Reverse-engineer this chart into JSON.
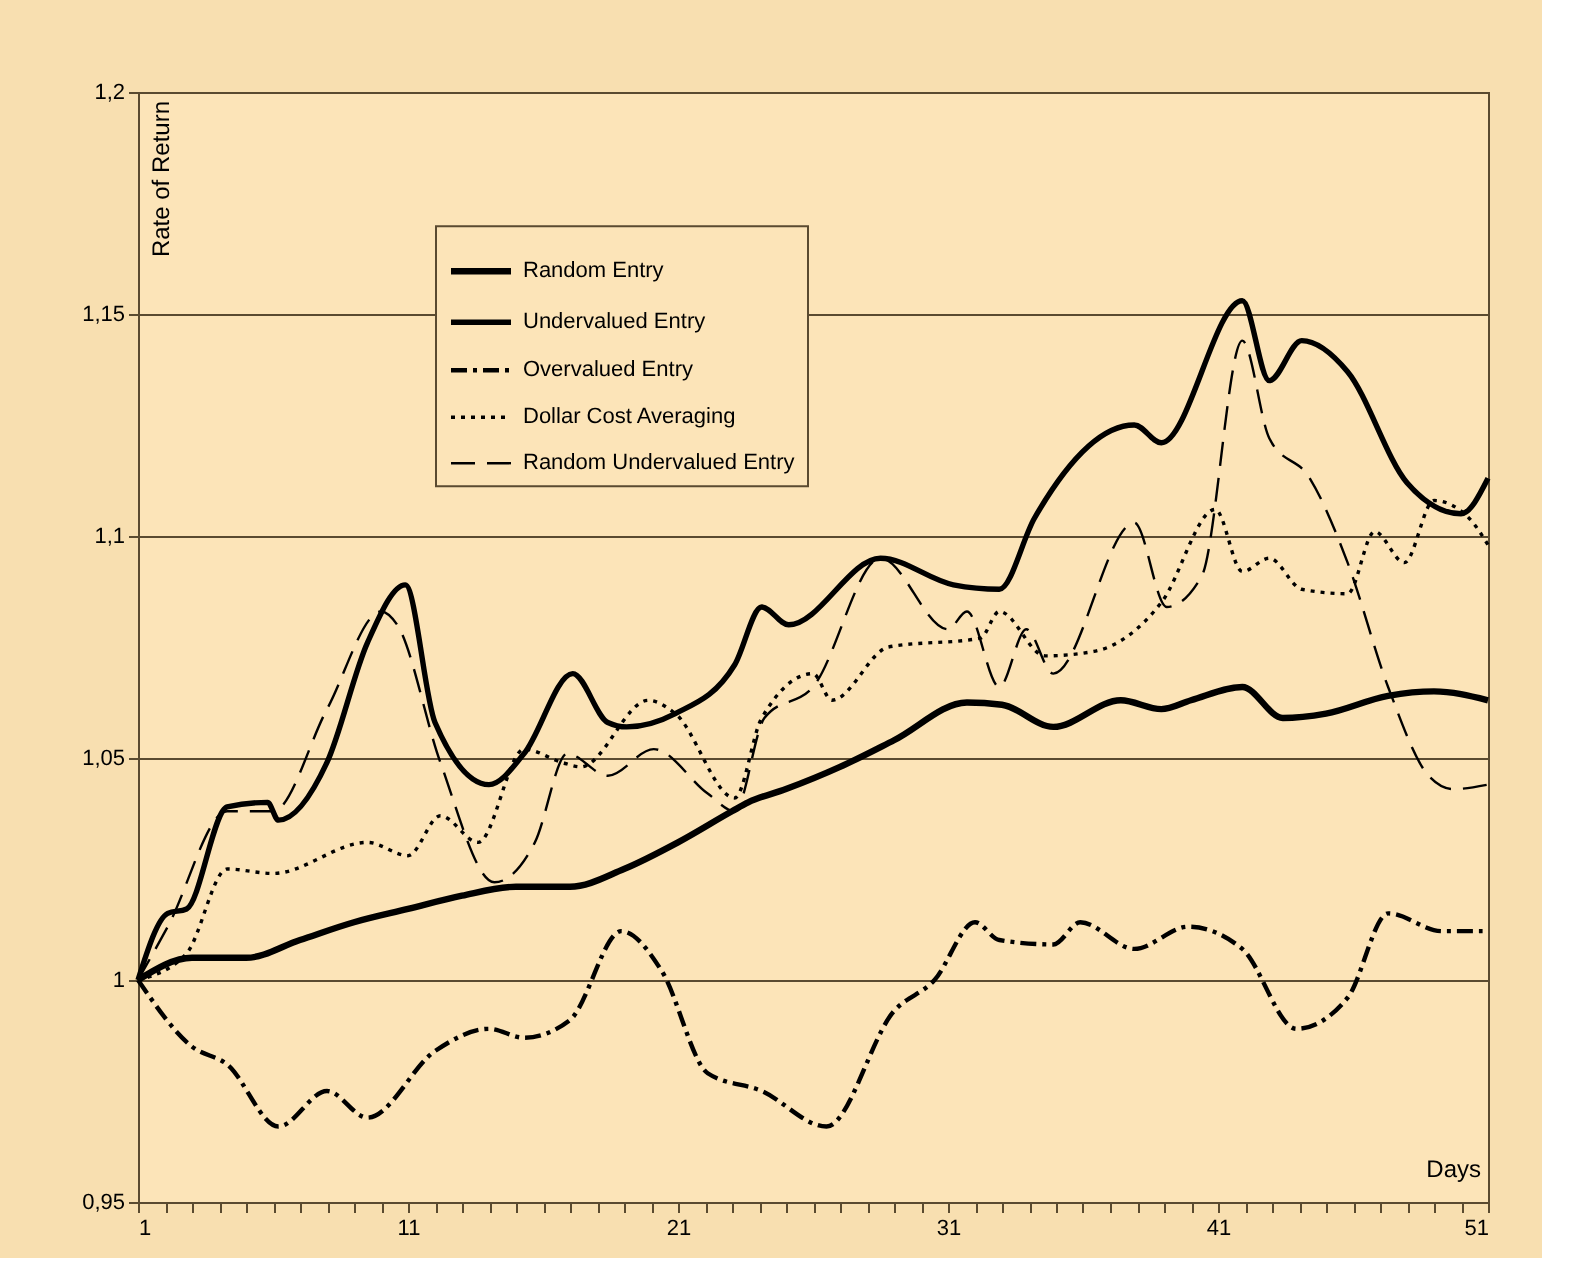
{
  "chart_data": {
    "type": "line",
    "xlabel": "Days",
    "ylabel": "Rate of Return",
    "xlim": [
      1,
      51
    ],
    "ylim": [
      0.95,
      1.2
    ],
    "xticks": [
      1,
      {
        "value": 2,
        "label": null
      },
      {
        "value": 3,
        "label": null
      },
      {
        "value": 4,
        "label": null
      },
      {
        "value": 5,
        "label": null
      },
      {
        "value": 6,
        "label": null
      },
      {
        "value": 7,
        "label": null
      },
      {
        "value": 8,
        "label": null
      },
      {
        "value": 9,
        "label": null
      },
      {
        "value": 10,
        "label": null
      },
      11,
      {
        "value": 12,
        "label": null
      },
      {
        "value": 13,
        "label": null
      },
      {
        "value": 14,
        "label": null
      },
      {
        "value": 15,
        "label": null
      },
      {
        "value": 16,
        "label": null
      },
      {
        "value": 17,
        "label": null
      },
      {
        "value": 18,
        "label": null
      },
      {
        "value": 19,
        "label": null
      },
      {
        "value": 20,
        "label": null
      },
      21,
      {
        "value": 22,
        "label": null
      },
      {
        "value": 23,
        "label": null
      },
      {
        "value": 24,
        "label": null
      },
      {
        "value": 25,
        "label": null
      },
      {
        "value": 26,
        "label": null
      },
      {
        "value": 27,
        "label": null
      },
      {
        "value": 28,
        "label": null
      },
      {
        "value": 29,
        "label": null
      },
      {
        "value": 30,
        "label": null
      },
      31,
      {
        "value": 32,
        "label": null
      },
      {
        "value": 33,
        "label": null
      },
      {
        "value": 34,
        "label": null
      },
      {
        "value": 35,
        "label": null
      },
      {
        "value": 36,
        "label": null
      },
      {
        "value": 37,
        "label": null
      },
      {
        "value": 38,
        "label": null
      },
      {
        "value": 39,
        "label": null
      },
      {
        "value": 40,
        "label": null
      },
      41,
      {
        "value": 42,
        "label": null
      },
      {
        "value": 43,
        "label": null
      },
      {
        "value": 44,
        "label": null
      },
      {
        "value": 45,
        "label": null
      },
      {
        "value": 46,
        "label": null
      },
      {
        "value": 47,
        "label": null
      },
      {
        "value": 48,
        "label": null
      },
      {
        "value": 49,
        "label": null
      },
      {
        "value": 50,
        "label": null
      },
      51
    ],
    "yticks": [
      {
        "value": 0.95,
        "label": "0,95"
      },
      1,
      {
        "value": 1.05,
        "label": "1,05"
      },
      {
        "value": 1.1,
        "label": "1,1"
      },
      {
        "value": 1.15,
        "label": "1,15"
      },
      {
        "value": 1.2,
        "label": "1,2"
      }
    ],
    "grid": "y",
    "legend": "top left",
    "marker": "none",
    "series": [
      {
        "name": "Random Entry",
        "color": "#000000",
        "line_style": "solid",
        "x": [
          1,
          3,
          5,
          7,
          9,
          11,
          13,
          15,
          17,
          19,
          21,
          23,
          23.6,
          25,
          27,
          29,
          31.7,
          33,
          34.9,
          37.4,
          38.9,
          40,
          41.9,
          43.4,
          45,
          47.3,
          49,
          51
        ],
        "values": [
          1.0,
          1.005,
          1.005,
          1.009,
          1.013,
          1.016,
          1.019,
          1.021,
          1.021,
          1.025,
          1.031,
          1.038,
          1.04,
          1.043,
          1.048,
          1.054,
          1.0625,
          1.062,
          1.057,
          1.063,
          1.061,
          1.063,
          1.066,
          1.059,
          1.06,
          1.064,
          1.065,
          1.063
        ]
      },
      {
        "name": "Undervalued Entry",
        "color": "#000000",
        "line_style": "solid",
        "x": [
          1,
          2.1,
          2.8,
          4.3,
          5.8,
          6.2,
          8.0,
          9.5,
          10.9,
          12.0,
          14.0,
          15.3,
          17.1,
          18.4,
          19.1,
          20.9,
          23.1,
          24.1,
          25.1,
          28.5,
          31.2,
          32.9,
          34.2,
          37.9,
          38.9,
          41.9,
          42.9,
          44.1,
          45.8,
          48.0,
          50.0,
          51
        ],
        "values": [
          1.0,
          1.015,
          1.016,
          1.039,
          1.04,
          1.036,
          1.049,
          1.076,
          1.089,
          1.058,
          1.044,
          1.051,
          1.069,
          1.058,
          1.057,
          1.06,
          1.071,
          1.084,
          1.08,
          1.095,
          1.089,
          1.088,
          1.104,
          1.125,
          1.121,
          1.153,
          1.135,
          1.144,
          1.137,
          1.112,
          1.105,
          1.113
        ]
      },
      {
        "name": "Overvalued Entry",
        "color": "#000000",
        "line_style": "dashdot",
        "x": [
          1,
          3.0,
          4.3,
          6.2,
          8.0,
          9.5,
          12.0,
          14.0,
          15.3,
          17.0,
          18.9,
          20.4,
          22.1,
          24.1,
          26.5,
          29.0,
          30.5,
          32.0,
          32.9,
          34.9,
          35.9,
          37.9,
          39.9,
          41.9,
          43.9,
          45.8,
          47.3,
          49.3,
          50.8
        ],
        "values": [
          1.0,
          0.985,
          0.981,
          0.967,
          0.975,
          0.969,
          0.984,
          0.989,
          0.987,
          0.991,
          1.011,
          1.002,
          0.979,
          0.975,
          0.967,
          0.993,
          1.0,
          1.013,
          1.009,
          1.008,
          1.013,
          1.007,
          1.012,
          1.007,
          0.989,
          0.996,
          1.015,
          1.011,
          1.011
        ]
      },
      {
        "name": "Dollar Cost Averaging",
        "color": "#000000",
        "line_style": "dotted",
        "x": [
          1,
          2.8,
          4.3,
          6.0,
          9.5,
          11.0,
          12.2,
          13.6,
          15.3,
          16.7,
          17.4,
          19.9,
          20.9,
          23.1,
          24.1,
          26.0,
          26.7,
          28.8,
          32.2,
          32.9,
          34.6,
          36.4,
          38.9,
          40.9,
          41.9,
          42.9,
          44.1,
          45.8,
          46.8,
          47.9,
          49.0,
          50.3,
          51
        ],
        "values": [
          1.0,
          1.006,
          1.025,
          1.024,
          1.031,
          1.028,
          1.037,
          1.031,
          1.052,
          1.049,
          1.048,
          1.063,
          1.06,
          1.041,
          1.059,
          1.069,
          1.063,
          1.075,
          1.077,
          1.083,
          1.073,
          1.074,
          1.085,
          1.106,
          1.092,
          1.095,
          1.088,
          1.087,
          1.101,
          1.094,
          1.108,
          1.104,
          1.098
        ]
      },
      {
        "name": "Random Undervalued Entry",
        "color": "#000000",
        "line_style": "dashed",
        "x": [
          1,
          2.1,
          4.3,
          6.0,
          8.0,
          10.0,
          10.6,
          12.2,
          14.2,
          15.7,
          16.9,
          18.4,
          20.1,
          22.1,
          23.1,
          24.2,
          26.0,
          28.5,
          31.0,
          31.7,
          32.9,
          33.9,
          34.9,
          37.9,
          39.1,
          40.4,
          41.9,
          42.9,
          44.4,
          45.8,
          47.3,
          48.8,
          49.7,
          51
        ],
        "values": [
          1.0,
          1.012,
          1.038,
          1.038,
          1.061,
          1.083,
          1.08,
          1.049,
          1.022,
          1.031,
          1.051,
          1.046,
          1.052,
          1.042,
          1.038,
          1.059,
          1.066,
          1.095,
          1.079,
          1.083,
          1.066,
          1.079,
          1.069,
          1.103,
          1.084,
          1.091,
          1.144,
          1.122,
          1.113,
          1.094,
          1.066,
          1.046,
          1.043,
          1.044
        ]
      }
    ]
  }
}
